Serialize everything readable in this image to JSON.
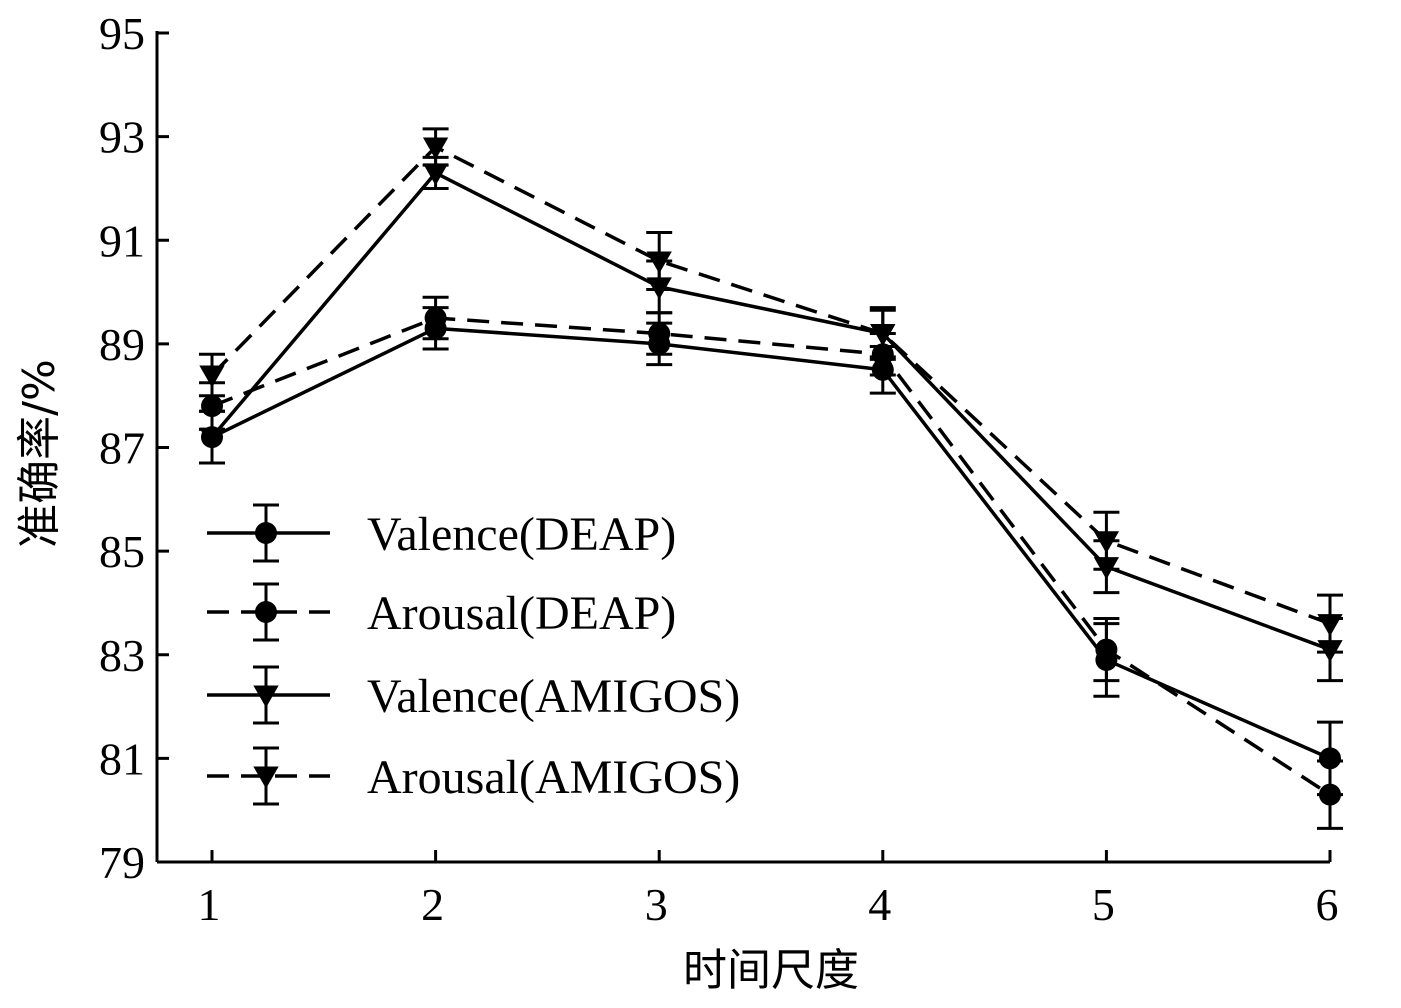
{
  "chart_data": {
    "type": "line",
    "title": "",
    "xlabel": "时间尺度",
    "ylabel": "准确率/%",
    "x": [
      1,
      2,
      3,
      4,
      5,
      6
    ],
    "xlim": [
      0.75,
      6.0
    ],
    "ylim": [
      79,
      95
    ],
    "yticks": [
      79,
      81,
      83,
      85,
      87,
      89,
      91,
      93,
      95
    ],
    "xticks": [
      1,
      2,
      3,
      4,
      5,
      6
    ],
    "grid": false,
    "legend_position": "lower-left",
    "series": [
      {
        "name": "Valence(DEAP)",
        "line_style": "solid",
        "marker": "circle",
        "values": [
          87.2,
          89.3,
          89.0,
          88.5,
          82.9,
          81.0
        ],
        "errors": [
          0.5,
          0.4,
          0.4,
          0.45,
          0.7,
          0.7
        ]
      },
      {
        "name": "Arousal(DEAP)",
        "line_style": "dashed",
        "marker": "circle",
        "values": [
          87.8,
          89.5,
          89.2,
          88.8,
          83.1,
          80.3
        ],
        "errors": [
          0.45,
          0.4,
          0.4,
          0.4,
          0.6,
          0.65
        ]
      },
      {
        "name": "Valence(AMIGOS)",
        "line_style": "solid",
        "marker": "triangle-down",
        "values": [
          87.2,
          92.3,
          90.1,
          89.2,
          84.7,
          83.1
        ],
        "errors": [
          0.5,
          0.3,
          0.5,
          0.45,
          0.5,
          0.6
        ]
      },
      {
        "name": "Arousal(AMIGOS)",
        "line_style": "dashed",
        "marker": "triangle-down",
        "values": [
          88.4,
          92.8,
          90.6,
          89.2,
          85.2,
          83.6
        ],
        "errors": [
          0.4,
          0.35,
          0.55,
          0.5,
          0.55,
          0.55
        ]
      }
    ]
  }
}
